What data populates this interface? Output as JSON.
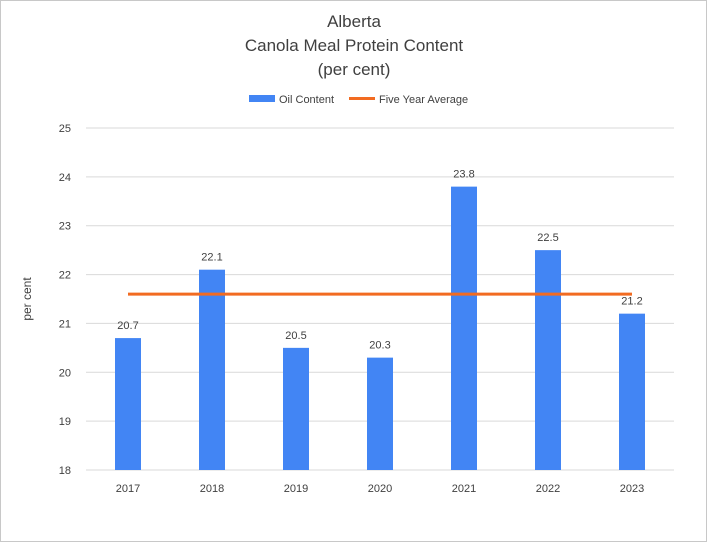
{
  "chart_data": {
    "type": "bar",
    "title": [
      "Alberta",
      "Canola Meal Protein Content",
      "(per cent)"
    ],
    "xlabel": "",
    "ylabel": "per cent",
    "categories": [
      "2017",
      "2018",
      "2019",
      "2020",
      "2021",
      "2022",
      "2023"
    ],
    "series": [
      {
        "name": "Oil Content",
        "type": "bar",
        "color": "#4285f4",
        "values": [
          20.7,
          22.1,
          20.5,
          20.3,
          23.8,
          22.5,
          21.2
        ],
        "data_labels": [
          "20.7",
          "22.1",
          "20.5",
          "20.3",
          "23.8",
          "22.5",
          "21.2"
        ]
      },
      {
        "name": "Five Year Average",
        "type": "line",
        "color": "#f26b21",
        "values": [
          21.6,
          21.6,
          21.6,
          21.6,
          21.6,
          21.6,
          21.6
        ]
      }
    ],
    "ylim": [
      18,
      25
    ],
    "yticks": [
      "18",
      "19",
      "20",
      "21",
      "22",
      "23",
      "24",
      "25"
    ],
    "grid": true,
    "gridline_color": "#d9d9d9",
    "legend_placement": "top-center"
  }
}
